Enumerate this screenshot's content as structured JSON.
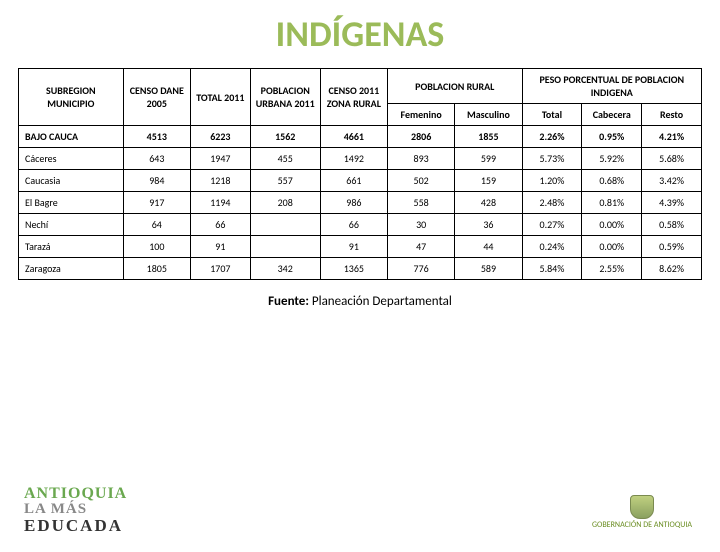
{
  "title": {
    "text": "INDÍGENAS",
    "color": "#9bbb59"
  },
  "table": {
    "headers": {
      "subregion": "SUBREGION MUNICIPIO",
      "censo_dane": "CENSO DANE 2005",
      "total_2011": "TOTAL 2011",
      "pob_urbana": "POBLACION URBANA 2011",
      "censo_rural": "CENSO 2011 ZONA RURAL",
      "pob_rural": "POBLACION RURAL",
      "peso_porcentual": "PESO PORCENTUAL DE POBLACION INDIGENA",
      "femenino": "Femenino",
      "masculino": "Masculino",
      "total": "Total",
      "cabecera": "Cabecera",
      "resto": "Resto"
    },
    "rows": [
      {
        "bold": true,
        "name": "BAJO CAUCA",
        "censo": "4513",
        "total": "6223",
        "urbana": "1562",
        "rural": "4661",
        "fem": "2806",
        "masc": "1855",
        "ptotal": "2.26%",
        "cab": "0.95%",
        "resto": "4.21%"
      },
      {
        "bold": false,
        "name": "Cáceres",
        "censo": "643",
        "total": "1947",
        "urbana": "455",
        "rural": "1492",
        "fem": "893",
        "masc": "599",
        "ptotal": "5.73%",
        "cab": "5.92%",
        "resto": "5.68%"
      },
      {
        "bold": false,
        "name": "Caucasia",
        "censo": "984",
        "total": "1218",
        "urbana": "557",
        "rural": "661",
        "fem": "502",
        "masc": "159",
        "ptotal": "1.20%",
        "cab": "0.68%",
        "resto": "3.42%"
      },
      {
        "bold": false,
        "name": "El Bagre",
        "censo": "917",
        "total": "1194",
        "urbana": "208",
        "rural": "986",
        "fem": "558",
        "masc": "428",
        "ptotal": "2.48%",
        "cab": "0.81%",
        "resto": "4.39%"
      },
      {
        "bold": false,
        "name": "Nechí",
        "censo": "64",
        "total": "66",
        "urbana": "",
        "rural": "66",
        "fem": "30",
        "masc": "36",
        "ptotal": "0.27%",
        "cab": "0.00%",
        "resto": "0.58%"
      },
      {
        "bold": false,
        "name": "Tarazá",
        "censo": "100",
        "total": "91",
        "urbana": "",
        "rural": "91",
        "fem": "47",
        "masc": "44",
        "ptotal": "0.24%",
        "cab": "0.00%",
        "resto": "0.59%"
      },
      {
        "bold": false,
        "name": "Zaragoza",
        "censo": "1805",
        "total": "1707",
        "urbana": "342",
        "rural": "1365",
        "fem": "776",
        "masc": "589",
        "ptotal": "5.84%",
        "cab": "2.55%",
        "resto": "8.62%"
      }
    ]
  },
  "source": {
    "label": "Fuente:",
    "text": "Planeación Departamental"
  },
  "logo_left": {
    "line1": "ANTIOQUIA",
    "line2": "LA MÁS",
    "line3": "EDUCADA"
  },
  "logo_right": {
    "line1": "GOBERNACIÓN DE ANTIOQUIA"
  }
}
